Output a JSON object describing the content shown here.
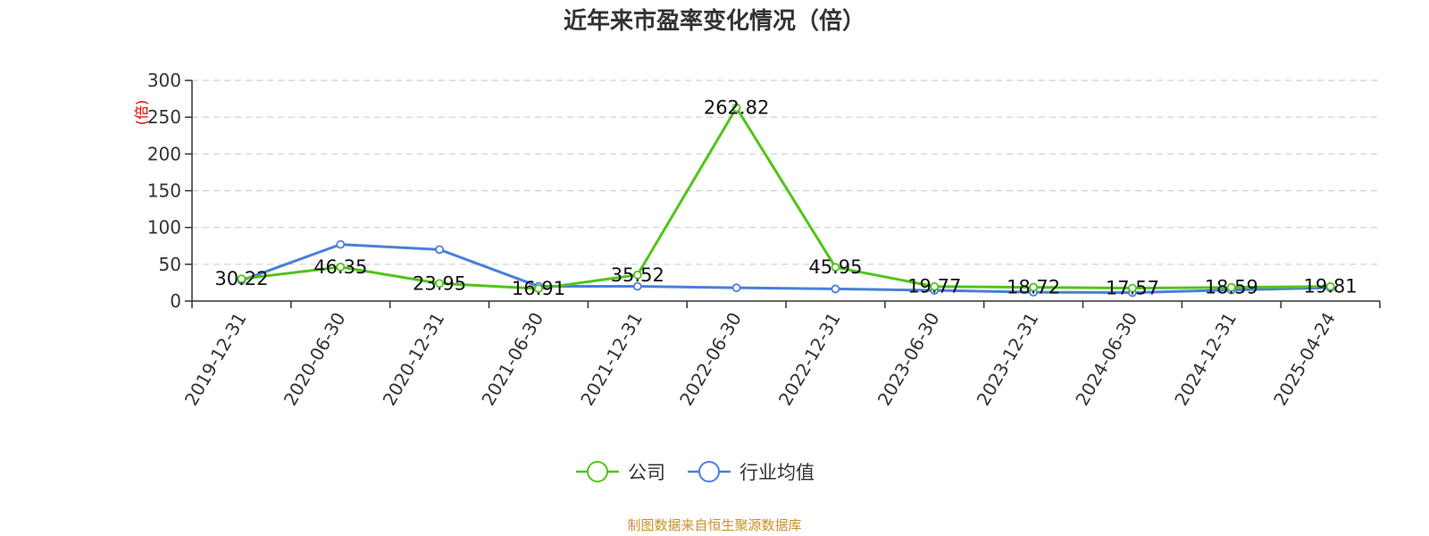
{
  "chart_data": {
    "type": "line",
    "title": "近年来市盈率变化情况（倍）",
    "ylabel": "(倍)",
    "ylim": [
      0,
      300
    ],
    "yticks": [
      0,
      50,
      100,
      150,
      200,
      250,
      300
    ],
    "grid": true,
    "legend_position": "bottom",
    "categories": [
      "2019-12-31",
      "2020-06-30",
      "2020-12-31",
      "2021-06-30",
      "2021-12-31",
      "2022-06-30",
      "2022-12-31",
      "2023-06-30",
      "2023-12-31",
      "2024-06-30",
      "2024-12-31",
      "2025-04-24"
    ],
    "series": [
      {
        "name": "公司",
        "color": "#52c41a",
        "values": [
          30.22,
          46.35,
          23.95,
          16.91,
          35.52,
          262.82,
          45.95,
          19.77,
          18.72,
          17.57,
          18.59,
          19.81
        ],
        "labels": [
          "30.22",
          "46.35",
          "23.95",
          "16.91",
          "35.52",
          "262.82",
          "45.95",
          "19.77",
          "18.72",
          "17.57",
          "18.59",
          "19.81"
        ]
      },
      {
        "name": "行业均值",
        "color": "#4a7fdc",
        "values": [
          28,
          77,
          70,
          20,
          20,
          18,
          16.5,
          14.5,
          12,
          11.5,
          15,
          18
        ]
      }
    ]
  },
  "source_text": "制图数据来自恒生聚源数据库"
}
